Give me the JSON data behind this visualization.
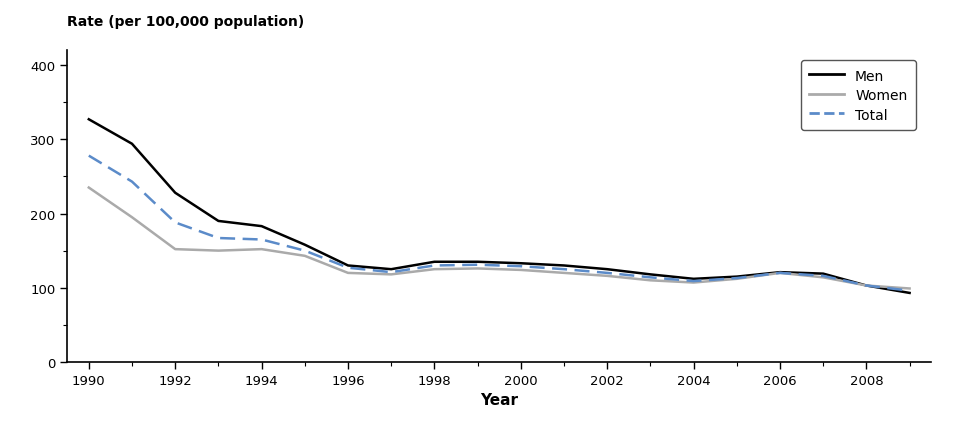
{
  "years": [
    1990,
    1991,
    1992,
    1993,
    1994,
    1995,
    1996,
    1997,
    1998,
    1999,
    2000,
    2001,
    2002,
    2003,
    2004,
    2005,
    2006,
    2007,
    2008,
    2009
  ],
  "men": [
    327,
    294,
    228,
    190,
    183,
    158,
    130,
    125,
    135,
    135,
    133,
    130,
    125,
    118,
    112,
    115,
    121,
    119,
    103,
    93
  ],
  "women": [
    235,
    195,
    152,
    150,
    152,
    143,
    120,
    118,
    125,
    126,
    124,
    120,
    116,
    110,
    107,
    112,
    120,
    114,
    103,
    99
  ],
  "total": [
    278,
    243,
    188,
    167,
    165,
    150,
    127,
    121,
    130,
    131,
    129,
    125,
    120,
    114,
    109,
    113,
    120,
    116,
    103,
    96
  ],
  "men_color": "#000000",
  "women_color": "#aaaaaa",
  "total_color": "#5b8bc9",
  "top_label": "Rate (per 100,000 population)",
  "xlabel": "Year",
  "ylim": [
    0,
    420
  ],
  "xlim": [
    1989.5,
    2009.5
  ],
  "yticks": [
    0,
    100,
    200,
    300,
    400
  ],
  "xticks": [
    1990,
    1992,
    1994,
    1996,
    1998,
    2000,
    2002,
    2004,
    2006,
    2008
  ],
  "legend_labels": [
    "Men",
    "Women",
    "Total"
  ]
}
